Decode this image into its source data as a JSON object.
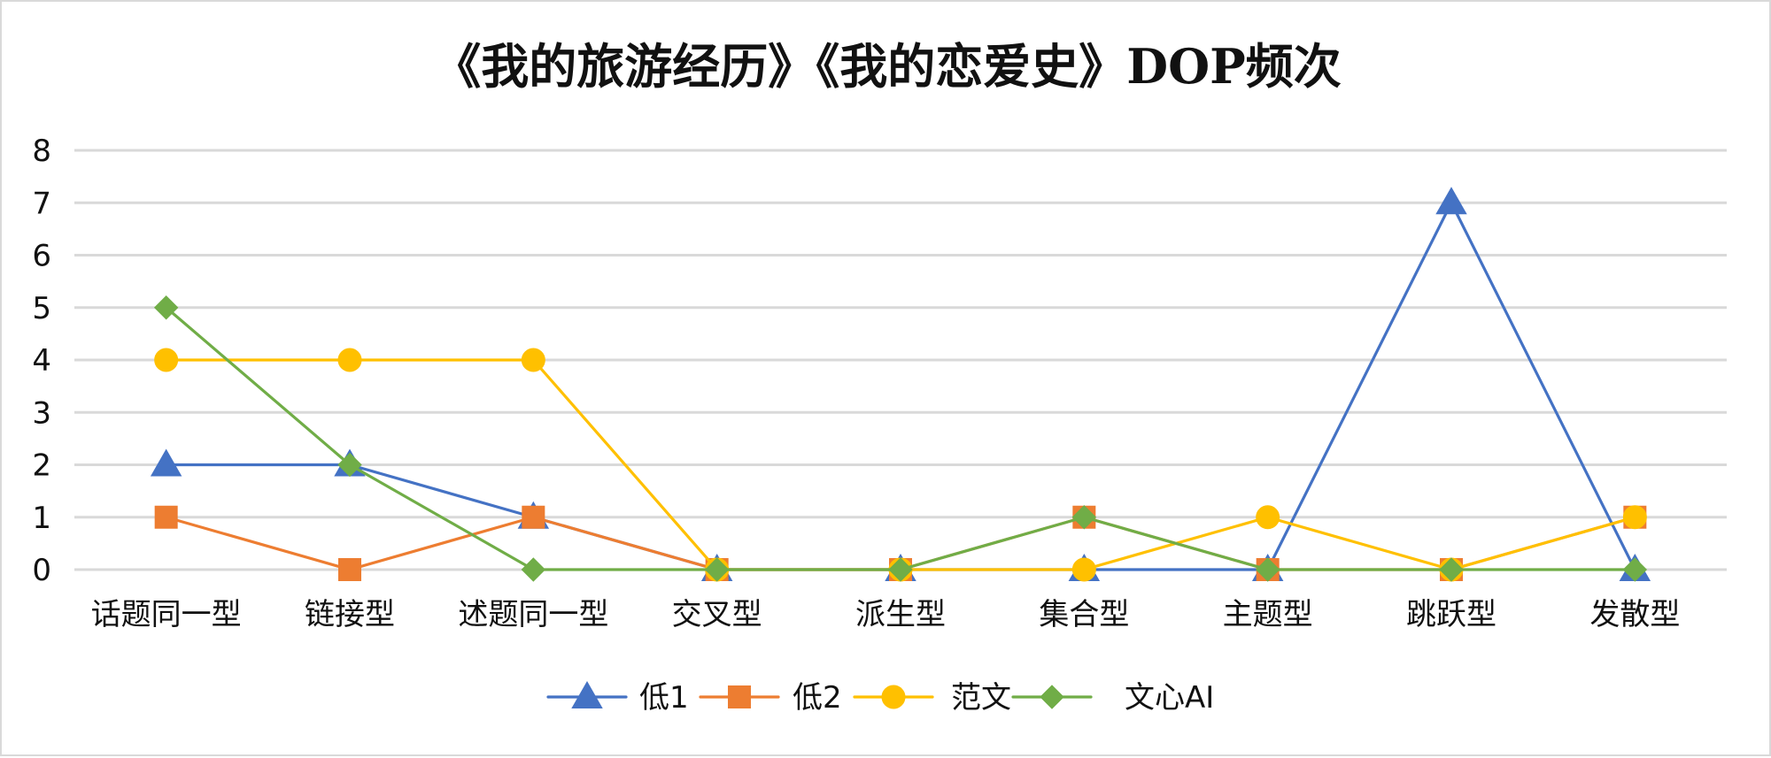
{
  "chart_data": {
    "type": "line",
    "title": "《我的旅游经历》《我的恋爱史》DOP频次",
    "xlabel": "",
    "ylabel": "",
    "categories": [
      "话题同一型",
      "链接型",
      "述题同一型",
      "交叉型",
      "派生型",
      "集合型",
      "主题型",
      "跳跃型",
      "发散型"
    ],
    "ylim": [
      0,
      8
    ],
    "yticks": [
      0,
      1,
      2,
      3,
      4,
      5,
      6,
      7,
      8
    ],
    "grid": true,
    "legend": "bottom",
    "series": [
      {
        "name": "低1",
        "values": [
          2,
          2,
          1,
          0,
          0,
          0,
          0,
          7,
          0
        ],
        "color": "#4472c4",
        "marker": "triangle"
      },
      {
        "name": "低2",
        "values": [
          1,
          0,
          1,
          0,
          0,
          1,
          0,
          0,
          1
        ],
        "color": "#ed7d31",
        "marker": "square"
      },
      {
        "name": "范文",
        "values": [
          4,
          4,
          4,
          0,
          0,
          0,
          1,
          0,
          1
        ],
        "color": "#ffc000",
        "marker": "circle"
      },
      {
        "name": "文心AI",
        "values": [
          5,
          2,
          0,
          0,
          0,
          1,
          0,
          0,
          0
        ],
        "color": "#70ad47",
        "marker": "diamond"
      }
    ]
  }
}
